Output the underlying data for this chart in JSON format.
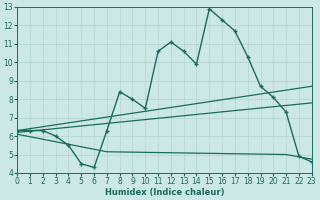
{
  "xlabel": "Humidex (Indice chaleur)",
  "x_values": [
    0,
    1,
    2,
    3,
    4,
    5,
    6,
    7,
    8,
    9,
    10,
    11,
    12,
    13,
    14,
    15,
    16,
    17,
    18,
    19,
    20,
    21,
    22,
    23
  ],
  "main_line": [
    6.3,
    6.3,
    6.3,
    6.0,
    5.5,
    4.5,
    4.3,
    6.3,
    8.4,
    8.0,
    7.5,
    10.6,
    11.1,
    10.6,
    9.9,
    12.9,
    12.3,
    11.7,
    10.3,
    8.7,
    8.1,
    7.3,
    4.9,
    4.6
  ],
  "upper_line_pts": [
    [
      0,
      6.3
    ],
    [
      23,
      8.7
    ]
  ],
  "mid_line_pts": [
    [
      0,
      6.2
    ],
    [
      23,
      7.8
    ]
  ],
  "lower_line_pts": [
    [
      0,
      6.1
    ],
    [
      7,
      5.15
    ],
    [
      21,
      5.0
    ],
    [
      23,
      4.75
    ]
  ],
  "line_color": "#1a6b5e",
  "bg_color": "#cce8e5",
  "grid_color": "#b8d8d5",
  "ylim": [
    4,
    13
  ],
  "xlim": [
    0,
    23
  ],
  "yticks": [
    4,
    5,
    6,
    7,
    8,
    9,
    10,
    11,
    12,
    13
  ],
  "xticks": [
    0,
    1,
    2,
    3,
    4,
    5,
    6,
    7,
    8,
    9,
    10,
    11,
    12,
    13,
    14,
    15,
    16,
    17,
    18,
    19,
    20,
    21,
    22,
    23
  ]
}
